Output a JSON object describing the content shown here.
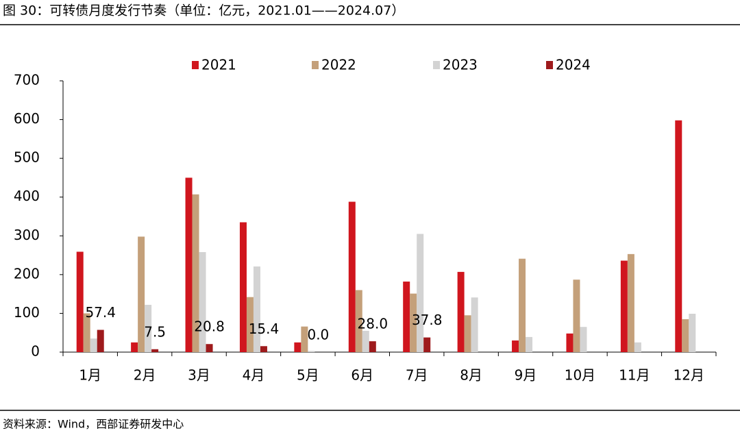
{
  "chart_data": {
    "type": "bar",
    "title": "图 30：可转债月度发行节奏（单位：亿元，2021.01——2024.07）",
    "source": "资料来源：Wind，西部证券研发中心",
    "categories": [
      "1月",
      "2月",
      "3月",
      "4月",
      "5月",
      "6月",
      "7月",
      "8月",
      "9月",
      "10月",
      "11月",
      "12月"
    ],
    "series": [
      {
        "name": "2021",
        "color": "#d0161e",
        "values": [
          259,
          25,
          450,
          335,
          25,
          388,
          182,
          207,
          30,
          48,
          236,
          598
        ]
      },
      {
        "name": "2022",
        "color": "#c4a07a",
        "values": [
          100,
          298,
          407,
          142,
          66,
          160,
          151,
          95,
          241,
          187,
          253,
          85
        ]
      },
      {
        "name": "2023",
        "color": "#d3d3d3",
        "values": [
          35,
          122,
          258,
          221,
          3,
          55,
          305,
          141,
          39,
          65,
          25,
          99
        ]
      },
      {
        "name": "2024",
        "color": "#9e1a1c",
        "values": [
          57.4,
          7.5,
          20.8,
          15.4,
          0,
          28,
          37.8,
          null,
          null,
          null,
          null,
          null
        ],
        "value_labels": [
          "57.4",
          "7.5",
          "20.8",
          "15.4",
          "0.0",
          "28.0",
          "37.8",
          null,
          null,
          null,
          null,
          null
        ]
      }
    ],
    "ylim": [
      0,
      700
    ],
    "yticks": [
      0,
      100,
      200,
      300,
      400,
      500,
      600,
      700
    ],
    "legend": "top"
  }
}
